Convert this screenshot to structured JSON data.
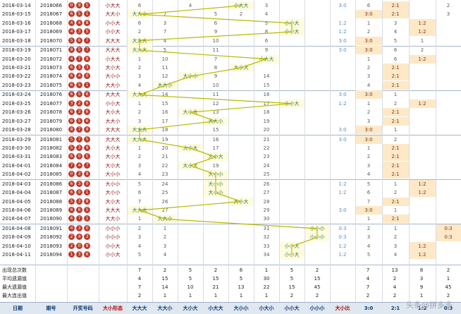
{
  "rows": [
    {
      "date": "2018-03-14",
      "qihao": "2018066",
      "balls": [
        "0",
        "9",
        "5"
      ],
      "pattern": "小大大",
      "patcol": 5,
      "nums": [
        "",
        "6",
        "",
        "4",
        "",
        "1",
        "3",
        "",
        "",
        "11",
        "2",
        "21"
      ],
      "ratio": "3:0",
      "ratio_col": 0,
      "r": [
        "6",
        "2:1",
        "",
        "2",
        "21"
      ]
    },
    {
      "date": "2018-03-15",
      "qihao": "2018067",
      "balls": [
        "6",
        "5",
        "1"
      ],
      "pattern": "大大小",
      "patcol": 1,
      "nums": [
        "",
        "1",
        "7",
        "",
        "5",
        "2",
        "4",
        "",
        "",
        "12",
        "",
        "22"
      ],
      "ratio": "",
      "ratio_col": -1,
      "r": [
        "3:0",
        "2:1",
        "",
        "3",
        "22"
      ]
    },
    {
      "date": "2018-03-16",
      "qihao": "2018068",
      "balls": [
        "4",
        "4",
        "8"
      ],
      "pattern": "小小大",
      "patcol": 7,
      "nums": [
        "",
        "6",
        "3",
        "",
        "6",
        "",
        "5",
        "",
        "",
        "13",
        "1",
        "23"
      ],
      "ratio": "1:2",
      "ratio_col": 3,
      "r": [
        "1",
        "3",
        "1:2",
        "",
        "23"
      ]
    },
    {
      "date": "2018-03-17",
      "qihao": "2018069",
      "balls": [
        "4",
        "3",
        "5"
      ],
      "pattern": "小小大",
      "patcol": 7,
      "nums": [
        "",
        "2",
        "7",
        "",
        "9",
        "",
        "8",
        "",
        "",
        "14",
        "2",
        "24"
      ],
      "ratio": "1:2",
      "ratio_col": 3,
      "r": [
        "2",
        "4",
        "1:2",
        "",
        "24"
      ]
    },
    {
      "date": "2018-03-18",
      "qihao": "2018070",
      "balls": [
        "5",
        "6",
        "7"
      ],
      "pattern": "大大大",
      "patcol": 1,
      "nums": [
        "",
        "",
        "4",
        "",
        "10",
        "",
        "6",
        "",
        "",
        "15",
        "3",
        "25"
      ],
      "ratio": "3:0",
      "ratio_col": 0,
      "r": [
        "3:0",
        "5",
        "1",
        "",
        "25"
      ]
    },
    {
      "date": "2018-03-19",
      "qihao": "2018071",
      "balls": [
        "8",
        "5",
        "7"
      ],
      "pattern": "大大大",
      "patcol": 1,
      "nums": [
        "",
        "",
        "5",
        "",
        "11",
        "",
        "9",
        "",
        "",
        "16",
        "4",
        "26"
      ],
      "ratio": "3:0",
      "ratio_col": 0,
      "r": [
        "3:0",
        "6",
        "2",
        "",
        "26"
      ]
    },
    {
      "date": "2018-03-20",
      "qihao": "2018072",
      "balls": [
        "4",
        "7",
        "9"
      ],
      "pattern": "小大大",
      "patcol": 6,
      "nums": [
        "",
        "1",
        "10",
        "",
        "7",
        "",
        "12",
        "",
        "",
        "17",
        "5",
        "27"
      ],
      "ratio": "",
      "ratio_col": -1,
      "r": [
        "1",
        "6",
        "1:2",
        "",
        "27"
      ]
    },
    {
      "date": "2018-03-21",
      "qihao": "2018073",
      "balls": [
        "6",
        "3",
        "3"
      ],
      "pattern": "大小大",
      "patcol": 5,
      "nums": [
        "",
        "2",
        "11",
        "",
        "8",
        "",
        "",
        "",
        "",
        "18",
        "6",
        "28"
      ],
      "ratio": "",
      "ratio_col": -1,
      "r": [
        "2",
        "2:1",
        "",
        "",
        "28"
      ]
    },
    {
      "date": "2018-03-22",
      "qihao": "2018074",
      "balls": [
        "6",
        "4",
        "0"
      ],
      "pattern": "大小小",
      "patcol": 3,
      "nums": [
        "",
        "3",
        "12",
        "",
        "9",
        "",
        "14",
        "",
        "",
        "19",
        "7",
        "29"
      ],
      "ratio": "",
      "ratio_col": -1,
      "r": [
        "3",
        "2:1",
        "",
        "",
        "29"
      ]
    },
    {
      "date": "2018-03-23",
      "qihao": "2018075",
      "balls": [
        "6",
        "5",
        "1"
      ],
      "pattern": "大大小",
      "patcol": 2,
      "nums": [
        "",
        "4",
        "",
        "",
        "10",
        "",
        "15",
        "",
        "",
        "20",
        "8",
        "30"
      ],
      "ratio": "",
      "ratio_col": -1,
      "r": [
        "4",
        "2:1",
        "",
        "",
        "30"
      ]
    },
    {
      "date": "2018-03-24",
      "qihao": "2018076",
      "balls": [
        "6",
        "5",
        "6"
      ],
      "pattern": "大大大",
      "patcol": 1,
      "nums": [
        "",
        "",
        "14",
        "",
        "11",
        "",
        "16",
        "",
        "",
        "21",
        "9",
        "31"
      ],
      "ratio": "3:0",
      "ratio_col": 0,
      "r": [
        "3:0",
        "1",
        "",
        "",
        "31"
      ]
    },
    {
      "date": "2018-03-25",
      "qihao": "2018077",
      "balls": [
        "3",
        "2",
        "6"
      ],
      "pattern": "小小大",
      "patcol": 7,
      "nums": [
        "",
        "1",
        "15",
        "",
        "12",
        "",
        "17",
        "",
        "",
        "22",
        "10",
        "32"
      ],
      "ratio": "1:2",
      "ratio_col": 3,
      "r": [
        "1",
        "2",
        "1:2",
        "",
        "32"
      ]
    },
    {
      "date": "2018-03-26",
      "qihao": "2018078",
      "balls": [
        "6",
        "3",
        "6"
      ],
      "pattern": "大小大",
      "patcol": 3,
      "nums": [
        "",
        "2",
        "16",
        "",
        "13",
        "",
        "18",
        "",
        "",
        "23",
        "11",
        "33"
      ],
      "ratio": "",
      "ratio_col": -1,
      "r": [
        "2",
        "2:1",
        "",
        "",
        "33"
      ]
    },
    {
      "date": "2018-03-27",
      "qihao": "2018079",
      "balls": [
        "6",
        "5",
        "6"
      ],
      "pattern": "大大小",
      "patcol": 4,
      "nums": [
        "",
        "3",
        "17",
        "",
        "14",
        "",
        "19",
        "",
        "",
        "24",
        "12",
        "34"
      ],
      "ratio": "",
      "ratio_col": -1,
      "r": [
        "3",
        "2:1",
        "",
        "",
        "34"
      ]
    },
    {
      "date": "2018-03-28",
      "qihao": "2018080",
      "balls": [
        "8",
        "7",
        "9"
      ],
      "pattern": "大大大",
      "patcol": 1,
      "nums": [
        "",
        "",
        "18",
        "",
        "15",
        "",
        "20",
        "",
        "",
        "25",
        "13",
        "35"
      ],
      "ratio": "3:0",
      "ratio_col": 0,
      "r": [
        "3:0",
        "1",
        "",
        "",
        "35"
      ]
    },
    {
      "date": "2018-03-29",
      "qihao": "2018081",
      "balls": [
        "5",
        "7",
        "5"
      ],
      "pattern": "大大大",
      "patcol": 1,
      "nums": [
        "",
        "",
        "19",
        "",
        "16",
        "",
        "21",
        "",
        "",
        "26",
        "14",
        "36"
      ],
      "ratio": "3:0",
      "ratio_col": 0,
      "r": [
        "3:0",
        "2",
        "",
        "",
        "36"
      ]
    },
    {
      "date": "2018-03-30",
      "qihao": "2018082",
      "balls": [
        "5",
        "3",
        "9"
      ],
      "pattern": "大小大",
      "patcol": 3,
      "nums": [
        "",
        "1",
        "20",
        "",
        "17",
        "",
        "22",
        "",
        "",
        "27",
        "15",
        "37"
      ],
      "ratio": "",
      "ratio_col": -1,
      "r": [
        "1",
        "2:1",
        "",
        "",
        "37"
      ]
    },
    {
      "date": "2018-03-31",
      "qihao": "2018083",
      "balls": [
        "6",
        "0",
        "5"
      ],
      "pattern": "大小大",
      "patcol": 4,
      "nums": [
        "",
        "2",
        "21",
        "",
        "18",
        "",
        "23",
        "",
        "",
        "28",
        "16",
        "38"
      ],
      "ratio": "",
      "ratio_col": -1,
      "r": [
        "2",
        "2:1",
        "",
        "",
        "38"
      ]
    },
    {
      "date": "2018-04-01",
      "qihao": "2018084",
      "balls": [
        "7",
        "4",
        "7"
      ],
      "pattern": "大小大",
      "patcol": 3,
      "nums": [
        "",
        "3",
        "22",
        "",
        "19",
        "",
        "24",
        "",
        "",
        "29",
        "17",
        "39"
      ],
      "ratio": "",
      "ratio_col": -1,
      "r": [
        "3",
        "2:1",
        "",
        "",
        "39"
      ]
    },
    {
      "date": "2018-04-02",
      "qihao": "2018085",
      "balls": [
        "0",
        "3",
        "9"
      ],
      "pattern": "大小小",
      "patcol": 4,
      "nums": [
        "",
        "4",
        "23",
        "",
        "",
        "",
        "25",
        "",
        "",
        "30",
        "18",
        "40"
      ],
      "ratio": "",
      "ratio_col": -1,
      "r": [
        "4",
        "2:1",
        "",
        "",
        "40"
      ]
    },
    {
      "date": "2018-04-03",
      "qihao": "2018086",
      "balls": [
        "6",
        "3",
        "0"
      ],
      "pattern": "大小小",
      "patcol": 4,
      "nums": [
        "",
        "5",
        "24",
        "",
        "",
        "",
        "26",
        "",
        "",
        "31",
        "19",
        "41"
      ],
      "ratio": "1:2",
      "ratio_col": 3,
      "r": [
        "5",
        "1",
        "1:2",
        "",
        "41"
      ]
    },
    {
      "date": "2018-04-04",
      "qihao": "2018087",
      "balls": [
        "6",
        "0",
        "1"
      ],
      "pattern": "大小小",
      "patcol": 4,
      "nums": [
        "",
        "6",
        "25",
        "",
        "",
        "",
        "27",
        "",
        "",
        "32",
        "20",
        "42"
      ],
      "ratio": "1:2",
      "ratio_col": 3,
      "r": [
        "6",
        "2",
        "1:2",
        "",
        "42"
      ]
    },
    {
      "date": "2018-04-05",
      "qihao": "2018088",
      "balls": [
        "5",
        "3",
        "8"
      ],
      "pattern": "大小大",
      "patcol": 5,
      "nums": [
        "",
        "7",
        "26",
        "",
        "",
        "",
        "28",
        "",
        "",
        "33",
        "21",
        "43"
      ],
      "ratio": "",
      "ratio_col": -1,
      "r": [
        "7",
        "2:1",
        "",
        "",
        "43"
      ]
    },
    {
      "date": "2018-04-06",
      "qihao": "2018089",
      "balls": [
        "6",
        "6",
        "5"
      ],
      "pattern": "大大大",
      "patcol": 1,
      "nums": [
        "",
        "",
        "27",
        "",
        "",
        "",
        "29",
        "",
        "",
        "34",
        "22",
        "44"
      ],
      "ratio": "3:0",
      "ratio_col": 0,
      "r": [
        "3:0",
        "1",
        "",
        "",
        "44"
      ]
    },
    {
      "date": "2018-04-07",
      "qihao": "2018090",
      "balls": [
        "6",
        "7",
        "1"
      ],
      "pattern": "大大小",
      "patcol": 2,
      "nums": [
        "",
        "1",
        "",
        "",
        "",
        "",
        "30",
        "",
        "",
        "35",
        "23",
        "45"
      ],
      "ratio": "",
      "ratio_col": -1,
      "r": [
        "1",
        "2:1",
        "",
        "",
        "45"
      ]
    },
    {
      "date": "2018-04-08",
      "qihao": "2018091",
      "balls": [
        "4",
        "3",
        "0"
      ],
      "pattern": "小小小",
      "patcol": 8,
      "nums": [
        "",
        "2",
        "1",
        "",
        "",
        "",
        "31",
        "",
        "",
        "36",
        "",
        "46"
      ],
      "ratio": "0:3",
      "ratio_col": 4,
      "r": [
        "2",
        "1",
        "",
        "0:3",
        "46"
      ]
    },
    {
      "date": "2018-04-09",
      "qihao": "2018092",
      "balls": [
        "2",
        "4",
        "3"
      ],
      "pattern": "小小小",
      "patcol": 8,
      "nums": [
        "",
        "3",
        "2",
        "",
        "",
        "",
        "32",
        "",
        "",
        "37",
        "",
        "47"
      ],
      "ratio": "0:3",
      "ratio_col": 4,
      "r": [
        "3",
        "2",
        "",
        "0:3",
        "47"
      ]
    },
    {
      "date": "2018-04-10",
      "qihao": "2018093",
      "balls": [
        "2",
        "0",
        "9"
      ],
      "pattern": "小小大",
      "patcol": 7,
      "nums": [
        "",
        "4",
        "3",
        "",
        "",
        "",
        "33",
        "",
        "",
        "38",
        "",
        "48"
      ],
      "ratio": "1:2",
      "ratio_col": 3,
      "r": [
        "4",
        "3",
        "1:2",
        "",
        "48"
      ]
    },
    {
      "date": "2018-04-11",
      "qihao": "2018094",
      "balls": [
        "1",
        "3",
        "6"
      ],
      "pattern": "小小大",
      "patcol": 7,
      "nums": [
        "",
        "5",
        "4",
        "",
        "",
        "",
        "34",
        "",
        "",
        "39",
        "",
        "49"
      ],
      "ratio": "1:2",
      "ratio_col": 3,
      "r": [
        "5",
        "4",
        "1:2",
        "",
        "49"
      ]
    }
  ],
  "stats": [
    {
      "label": "出现总次数",
      "vals": [
        "7",
        "2",
        "5",
        "2",
        "6",
        "1",
        "5",
        "2"
      ],
      "r": [
        "7",
        "13",
        "8",
        "2"
      ]
    },
    {
      "label": "平均遗漏值",
      "vals": [
        "4",
        "15",
        "5",
        "15",
        "5",
        "30",
        "5",
        "15"
      ],
      "r": [
        "4",
        "2",
        "3",
        "1"
      ]
    },
    {
      "label": "最大遗漏值",
      "vals": [
        "7",
        "14",
        "10",
        "21",
        "13",
        "22",
        "15",
        "45"
      ],
      "r": [
        "7",
        "4",
        "9",
        "45"
      ]
    },
    {
      "label": "最大连出值",
      "vals": [
        "2",
        "1",
        "1",
        "1",
        "1",
        "1",
        "2",
        "2"
      ],
      "r": [
        "2",
        "2",
        "1",
        "2"
      ]
    }
  ],
  "header": {
    "date": "日期",
    "qihao": "期号",
    "kaijiang": "开奖号码",
    "xingtai": "大小形态",
    "cols": [
      "大大大",
      "大大小",
      "大小大",
      "小大大",
      "大小小",
      "小大小",
      "小小大",
      "小小小"
    ],
    "bili": "大小比",
    "ratios": [
      "3:0",
      "2:1",
      "1:2",
      "0:3"
    ]
  },
  "watermark": "头条@拼多多"
}
